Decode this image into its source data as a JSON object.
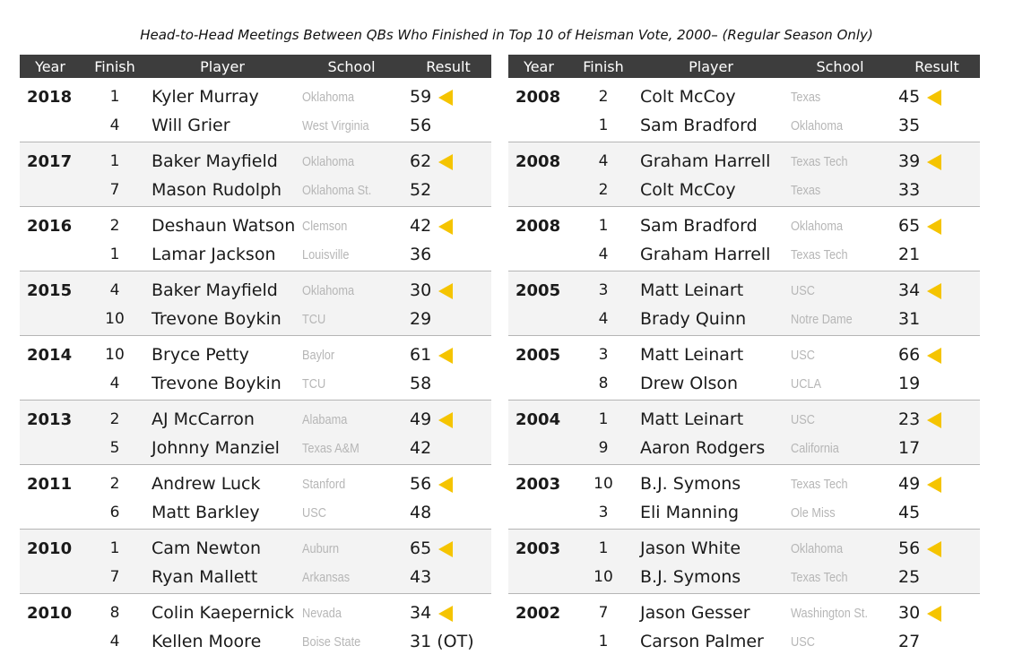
{
  "title": "Head-to-Head Meetings Between QBs Who Finished in Top 10 of Heisman Vote, 2000– (Regular Season Only)",
  "columns": {
    "year": "Year",
    "finish": "Finish",
    "player": "Player",
    "school": "School",
    "result": "Result"
  },
  "win_marker": {
    "icon": "left-pointing-triangle-icon",
    "color": "#f5c400"
  },
  "left_table": [
    {
      "year": "2018",
      "rows": [
        {
          "finish": "1",
          "player": "Kyler Murray",
          "school": "Oklahoma",
          "result": "59",
          "winner": true
        },
        {
          "finish": "4",
          "player": "Will Grier",
          "school": "West Virginia",
          "result": "56",
          "winner": false
        }
      ]
    },
    {
      "year": "2017",
      "rows": [
        {
          "finish": "1",
          "player": "Baker Mayfield",
          "school": "Oklahoma",
          "result": "62",
          "winner": true
        },
        {
          "finish": "7",
          "player": "Mason Rudolph",
          "school": "Oklahoma St.",
          "result": "52",
          "winner": false
        }
      ]
    },
    {
      "year": "2016",
      "rows": [
        {
          "finish": "2",
          "player": "Deshaun Watson",
          "school": "Clemson",
          "result": "42",
          "winner": true
        },
        {
          "finish": "1",
          "player": "Lamar Jackson",
          "school": "Louisville",
          "result": "36",
          "winner": false
        }
      ]
    },
    {
      "year": "2015",
      "rows": [
        {
          "finish": "4",
          "player": "Baker Mayfield",
          "school": "Oklahoma",
          "result": "30",
          "winner": true
        },
        {
          "finish": "10",
          "player": "Trevone Boykin",
          "school": "TCU",
          "result": "29",
          "winner": false
        }
      ]
    },
    {
      "year": "2014",
      "rows": [
        {
          "finish": "10",
          "player": "Bryce Petty",
          "school": "Baylor",
          "result": "61",
          "winner": true
        },
        {
          "finish": "4",
          "player": "Trevone Boykin",
          "school": "TCU",
          "result": "58",
          "winner": false
        }
      ]
    },
    {
      "year": "2013",
      "rows": [
        {
          "finish": "2",
          "player": "AJ McCarron",
          "school": "Alabama",
          "result": "49",
          "winner": true
        },
        {
          "finish": "5",
          "player": "Johnny Manziel",
          "school": "Texas A&M",
          "result": "42",
          "winner": false
        }
      ]
    },
    {
      "year": "2011",
      "rows": [
        {
          "finish": "2",
          "player": "Andrew Luck",
          "school": "Stanford",
          "result": "56",
          "winner": true
        },
        {
          "finish": "6",
          "player": "Matt Barkley",
          "school": "USC",
          "result": "48",
          "winner": false
        }
      ]
    },
    {
      "year": "2010",
      "rows": [
        {
          "finish": "1",
          "player": "Cam Newton",
          "school": "Auburn",
          "result": "65",
          "winner": true
        },
        {
          "finish": "7",
          "player": "Ryan Mallett",
          "school": "Arkansas",
          "result": "43",
          "winner": false
        }
      ]
    },
    {
      "year": "2010",
      "rows": [
        {
          "finish": "8",
          "player": "Colin Kaepernick",
          "school": "Nevada",
          "result": "34",
          "winner": true
        },
        {
          "finish": "4",
          "player": "Kellen Moore",
          "school": "Boise State",
          "result": "31 (OT)",
          "winner": false
        }
      ]
    }
  ],
  "right_table": [
    {
      "year": "2008",
      "rows": [
        {
          "finish": "2",
          "player": "Colt McCoy",
          "school": "Texas",
          "result": "45",
          "winner": true
        },
        {
          "finish": "1",
          "player": "Sam Bradford",
          "school": "Oklahoma",
          "result": "35",
          "winner": false
        }
      ]
    },
    {
      "year": "2008",
      "rows": [
        {
          "finish": "4",
          "player": "Graham Harrell",
          "school": "Texas Tech",
          "result": "39",
          "winner": true
        },
        {
          "finish": "2",
          "player": "Colt McCoy",
          "school": "Texas",
          "result": "33",
          "winner": false
        }
      ]
    },
    {
      "year": "2008",
      "rows": [
        {
          "finish": "1",
          "player": "Sam Bradford",
          "school": "Oklahoma",
          "result": "65",
          "winner": true
        },
        {
          "finish": "4",
          "player": "Graham Harrell",
          "school": "Texas Tech",
          "result": "21",
          "winner": false
        }
      ]
    },
    {
      "year": "2005",
      "rows": [
        {
          "finish": "3",
          "player": "Matt Leinart",
          "school": "USC",
          "result": "34",
          "winner": true
        },
        {
          "finish": "4",
          "player": "Brady Quinn",
          "school": "Notre Dame",
          "result": "31",
          "winner": false
        }
      ]
    },
    {
      "year": "2005",
      "rows": [
        {
          "finish": "3",
          "player": "Matt Leinart",
          "school": "USC",
          "result": "66",
          "winner": true
        },
        {
          "finish": "8",
          "player": "Drew Olson",
          "school": "UCLA",
          "result": "19",
          "winner": false
        }
      ]
    },
    {
      "year": "2004",
      "rows": [
        {
          "finish": "1",
          "player": "Matt Leinart",
          "school": "USC",
          "result": "23",
          "winner": true
        },
        {
          "finish": "9",
          "player": "Aaron Rodgers",
          "school": "California",
          "result": "17",
          "winner": false
        }
      ]
    },
    {
      "year": "2003",
      "rows": [
        {
          "finish": "10",
          "player": "B.J. Symons",
          "school": "Texas Tech",
          "result": "49",
          "winner": true
        },
        {
          "finish": "3",
          "player": "Eli Manning",
          "school": "Ole Miss",
          "result": "45",
          "winner": false
        }
      ]
    },
    {
      "year": "2003",
      "rows": [
        {
          "finish": "1",
          "player": "Jason White",
          "school": "Oklahoma",
          "result": "56",
          "winner": true
        },
        {
          "finish": "10",
          "player": "B.J. Symons",
          "school": "Texas Tech",
          "result": "25",
          "winner": false
        }
      ]
    },
    {
      "year": "2002",
      "rows": [
        {
          "finish": "7",
          "player": "Jason Gesser",
          "school": "Washington St.",
          "result": "30",
          "winner": true
        },
        {
          "finish": "1",
          "player": "Carson Palmer",
          "school": "USC",
          "result": "27",
          "winner": false
        }
      ]
    }
  ]
}
